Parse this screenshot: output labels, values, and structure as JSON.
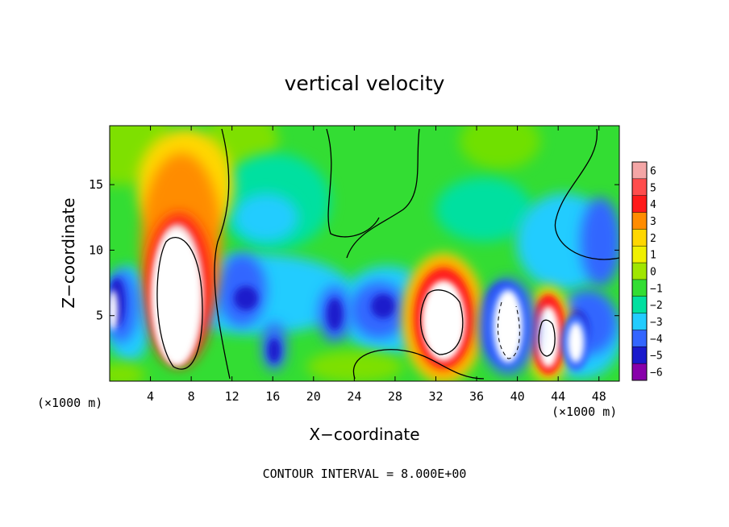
{
  "chart_data": {
    "type": "heatmap",
    "title": "vertical velocity",
    "xlabel": "X−coordinate",
    "ylabel": "Z−coordinate",
    "x_unit_label": "(×1000 m)",
    "z_unit_label": "(×1000 m)",
    "xlim": [
      0,
      50
    ],
    "ylim": [
      0,
      19.5
    ],
    "x_ticks": [
      4,
      8,
      12,
      16,
      20,
      24,
      28,
      32,
      36,
      40,
      44,
      48
    ],
    "y_ticks": [
      5,
      10,
      15
    ],
    "colorbar": {
      "levels": [
        6,
        5,
        4,
        3,
        2,
        1,
        0,
        -1,
        -2,
        -3,
        -4,
        -5,
        -6
      ],
      "tick_labels": [
        "6",
        "5",
        "4",
        "3",
        "2",
        "1",
        "0",
        "−1",
        "−2",
        "−3",
        "−4",
        "−5",
        "−6"
      ],
      "colors": [
        "#f4a6a6",
        "#ff4d4d",
        "#ff1a1a",
        "#ff8c00",
        "#ffd700",
        "#f0f000",
        "#a0e600",
        "#33dd33",
        "#00e0a0",
        "#22ccff",
        "#3366ff",
        "#1a1acc",
        "#8800aa"
      ]
    },
    "features": [
      {
        "kind": "updraft",
        "x": 7,
        "z": 6,
        "w": 12
      },
      {
        "kind": "updraft",
        "x": 33.5,
        "z": 4.5,
        "w": 11
      },
      {
        "kind": "updraft",
        "x": 42.5,
        "z": 3,
        "w": 9
      },
      {
        "kind": "downdraft",
        "x": 38.5,
        "z": 4.5,
        "w": -10
      },
      {
        "kind": "downdraft",
        "x": 46,
        "z": 3.5,
        "w": -8
      },
      {
        "kind": "downdraft",
        "x": 0.5,
        "z": 6,
        "w": -7
      },
      {
        "kind": "downdraft",
        "x": 16,
        "z": 2.5,
        "w": -5
      },
      {
        "kind": "downdraft",
        "x": 22,
        "z": 5,
        "w": -6
      },
      {
        "kind": "downdraft",
        "x": 27,
        "z": 6,
        "w": -5
      }
    ],
    "note": "CONTOUR INTERVAL = 8.000E+00"
  }
}
